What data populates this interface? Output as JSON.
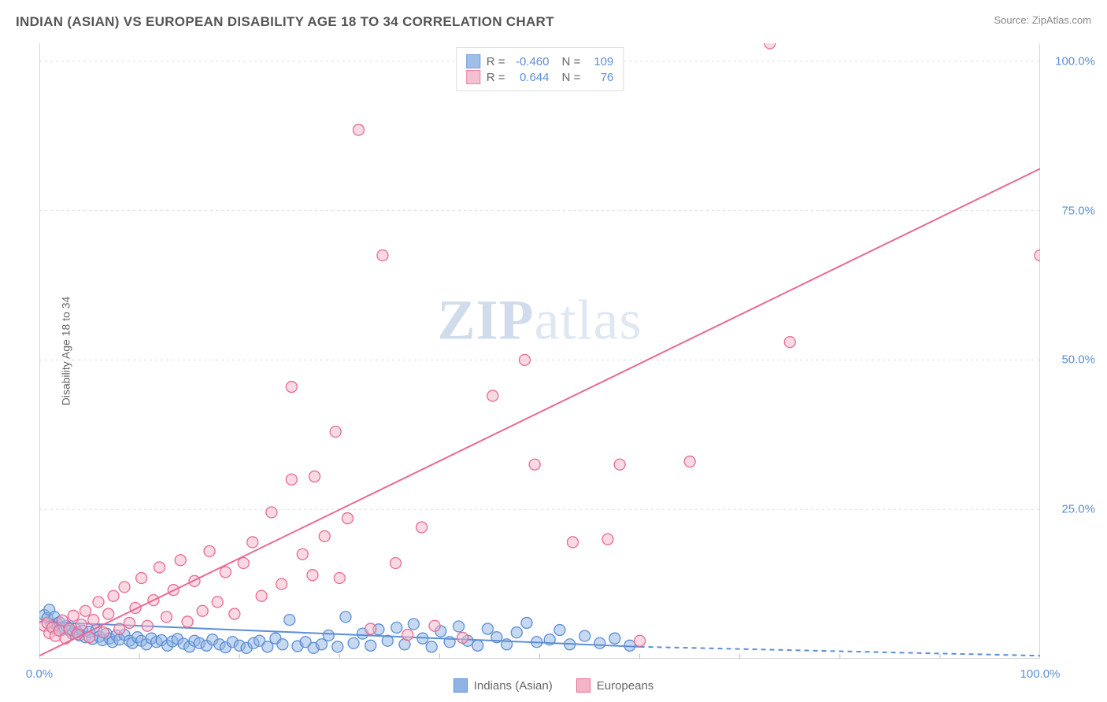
{
  "title": "INDIAN (ASIAN) VS EUROPEAN DISABILITY AGE 18 TO 34 CORRELATION CHART",
  "source_prefix": "Source: ",
  "source_link": "ZipAtlas.com",
  "ylabel": "Disability Age 18 to 34",
  "watermark_bold": "ZIP",
  "watermark_light": "atlas",
  "chart": {
    "type": "scatter",
    "background_color": "#ffffff",
    "grid_color": "#dddddd",
    "border_color": "#bbbbbb",
    "xlim": [
      0,
      100
    ],
    "ylim": [
      0,
      103
    ],
    "xtick_labels": [
      {
        "pos": 0,
        "label": "0.0%"
      },
      {
        "pos": 100,
        "label": "100.0%"
      }
    ],
    "xtick_minor": [
      10,
      20,
      30,
      40,
      50,
      60,
      70,
      80,
      90
    ],
    "ytick_labels": [
      {
        "pos": 25,
        "label": "25.0%"
      },
      {
        "pos": 50,
        "label": "50.0%"
      },
      {
        "pos": 75,
        "label": "75.0%"
      },
      {
        "pos": 100,
        "label": "100.0%"
      }
    ],
    "series": [
      {
        "name": "Indians (Asian)",
        "fill_color": "#8fb4e3",
        "stroke_color": "#5b8fd6",
        "fill_opacity": 0.5,
        "marker_radius": 7,
        "R": "-0.460",
        "N": "109",
        "trend": {
          "x1": 0,
          "y1": 6.2,
          "x2": 60,
          "y2": 2.0,
          "dash_from_x": 60,
          "dash_x2": 100,
          "dash_y2": 0.5,
          "color": "#5b8fd6",
          "width": 2
        },
        "points": [
          [
            0.5,
            7.3
          ],
          [
            0.8,
            6.8
          ],
          [
            1.0,
            8.2
          ],
          [
            1.2,
            5.5
          ],
          [
            1.5,
            7.0
          ],
          [
            1.8,
            5.9
          ],
          [
            2.0,
            6.1
          ],
          [
            2.2,
            4.8
          ],
          [
            2.5,
            5.2
          ],
          [
            2.7,
            5.5
          ],
          [
            3.0,
            4.7
          ],
          [
            3.3,
            4.2
          ],
          [
            3.6,
            5.0
          ],
          [
            3.8,
            4.4
          ],
          [
            4.0,
            3.9
          ],
          [
            4.3,
            4.7
          ],
          [
            4.6,
            3.6
          ],
          [
            5.0,
            4.5
          ],
          [
            5.3,
            3.3
          ],
          [
            5.7,
            4.8
          ],
          [
            6.0,
            3.7
          ],
          [
            6.3,
            3.1
          ],
          [
            6.7,
            4.2
          ],
          [
            7.0,
            3.4
          ],
          [
            7.3,
            2.8
          ],
          [
            7.7,
            3.9
          ],
          [
            8.0,
            3.2
          ],
          [
            8.5,
            4.0
          ],
          [
            9.0,
            3.0
          ],
          [
            9.3,
            2.6
          ],
          [
            9.8,
            3.6
          ],
          [
            10.2,
            3.0
          ],
          [
            10.7,
            2.4
          ],
          [
            11.2,
            3.4
          ],
          [
            11.7,
            2.8
          ],
          [
            12.2,
            3.1
          ],
          [
            12.8,
            2.2
          ],
          [
            13.3,
            2.9
          ],
          [
            13.8,
            3.3
          ],
          [
            14.4,
            2.5
          ],
          [
            15.0,
            2.0
          ],
          [
            15.5,
            3.0
          ],
          [
            16.0,
            2.6
          ],
          [
            16.7,
            2.2
          ],
          [
            17.3,
            3.2
          ],
          [
            18.0,
            2.4
          ],
          [
            18.6,
            1.9
          ],
          [
            19.3,
            2.8
          ],
          [
            20.0,
            2.2
          ],
          [
            20.7,
            1.8
          ],
          [
            21.4,
            2.6
          ],
          [
            22.0,
            3.0
          ],
          [
            22.8,
            2.0
          ],
          [
            23.6,
            3.4
          ],
          [
            24.3,
            2.4
          ],
          [
            25.0,
            6.5
          ],
          [
            25.8,
            2.1
          ],
          [
            26.6,
            2.8
          ],
          [
            27.4,
            1.8
          ],
          [
            28.2,
            2.4
          ],
          [
            28.9,
            3.9
          ],
          [
            29.8,
            2.0
          ],
          [
            30.6,
            7.0
          ],
          [
            31.4,
            2.6
          ],
          [
            32.3,
            4.2
          ],
          [
            33.1,
            2.2
          ],
          [
            33.9,
            4.9
          ],
          [
            34.8,
            3.0
          ],
          [
            35.7,
            5.2
          ],
          [
            36.5,
            2.4
          ],
          [
            37.4,
            5.8
          ],
          [
            38.3,
            3.4
          ],
          [
            39.2,
            2.0
          ],
          [
            40.1,
            4.6
          ],
          [
            41.0,
            2.8
          ],
          [
            41.9,
            5.4
          ],
          [
            42.8,
            3.0
          ],
          [
            43.8,
            2.2
          ],
          [
            44.8,
            5.0
          ],
          [
            45.7,
            3.6
          ],
          [
            46.7,
            2.4
          ],
          [
            47.7,
            4.4
          ],
          [
            48.7,
            6.0
          ],
          [
            49.7,
            2.8
          ],
          [
            51.0,
            3.2
          ],
          [
            52.0,
            4.8
          ],
          [
            53.0,
            2.4
          ],
          [
            54.5,
            3.8
          ],
          [
            56.0,
            2.6
          ],
          [
            57.5,
            3.4
          ],
          [
            59.0,
            2.2
          ]
        ]
      },
      {
        "name": "Europeans",
        "fill_color": "#f4b6c7",
        "stroke_color": "#e86a93",
        "fill_opacity": 0.5,
        "marker_radius": 7,
        "R": "0.644",
        "N": "76",
        "trend": {
          "x1": 0,
          "y1": 0.5,
          "x2": 100,
          "y2": 82,
          "color": "#e86a93",
          "width": 2
        },
        "points": [
          [
            0.5,
            5.5
          ],
          [
            0.8,
            6.0
          ],
          [
            1.0,
            4.3
          ],
          [
            1.3,
            5.2
          ],
          [
            1.6,
            3.8
          ],
          [
            2.0,
            4.7
          ],
          [
            2.3,
            6.4
          ],
          [
            2.6,
            3.4
          ],
          [
            3.0,
            5.0
          ],
          [
            3.4,
            7.2
          ],
          [
            3.8,
            4.1
          ],
          [
            4.2,
            5.7
          ],
          [
            4.6,
            8.0
          ],
          [
            5.0,
            3.6
          ],
          [
            5.4,
            6.5
          ],
          [
            5.9,
            9.5
          ],
          [
            6.4,
            4.4
          ],
          [
            6.9,
            7.5
          ],
          [
            7.4,
            10.5
          ],
          [
            8.0,
            5.0
          ],
          [
            8.5,
            12.0
          ],
          [
            9.0,
            6.0
          ],
          [
            9.6,
            8.5
          ],
          [
            10.2,
            13.5
          ],
          [
            10.8,
            5.5
          ],
          [
            11.4,
            9.8
          ],
          [
            12.0,
            15.3
          ],
          [
            12.7,
            7.0
          ],
          [
            13.4,
            11.5
          ],
          [
            14.1,
            16.5
          ],
          [
            14.8,
            6.2
          ],
          [
            15.5,
            13.0
          ],
          [
            16.3,
            8.0
          ],
          [
            17.0,
            18.0
          ],
          [
            17.8,
            9.5
          ],
          [
            18.6,
            14.5
          ],
          [
            19.5,
            7.5
          ],
          [
            20.4,
            16.0
          ],
          [
            21.3,
            19.5
          ],
          [
            22.2,
            10.5
          ],
          [
            23.2,
            24.5
          ],
          [
            24.2,
            12.5
          ],
          [
            25.2,
            45.5
          ],
          [
            25.2,
            30.0
          ],
          [
            26.3,
            17.5
          ],
          [
            27.3,
            14.0
          ],
          [
            27.5,
            30.5
          ],
          [
            28.5,
            20.5
          ],
          [
            29.6,
            38.0
          ],
          [
            30.0,
            13.5
          ],
          [
            30.8,
            23.5
          ],
          [
            31.9,
            88.5
          ],
          [
            33.1,
            5.0
          ],
          [
            34.3,
            67.5
          ],
          [
            35.6,
            16.0
          ],
          [
            36.8,
            4.0
          ],
          [
            38.2,
            22.0
          ],
          [
            39.5,
            5.5
          ],
          [
            42.3,
            3.5
          ],
          [
            45.3,
            44.0
          ],
          [
            48.5,
            50.0
          ],
          [
            49.5,
            32.5
          ],
          [
            53.3,
            19.5
          ],
          [
            56.8,
            20.0
          ],
          [
            58.0,
            32.5
          ],
          [
            60.0,
            3.0
          ],
          [
            65.0,
            33.0
          ],
          [
            73.0,
            103.0
          ],
          [
            75.0,
            53.0
          ],
          [
            100.0,
            67.5
          ]
        ]
      }
    ],
    "bottom_legend": [
      {
        "swatch_fill": "#8fb4e3",
        "swatch_stroke": "#5b8fd6",
        "label": "Indians (Asian)"
      },
      {
        "swatch_fill": "#f4b6c7",
        "swatch_stroke": "#e86a93",
        "label": "Europeans"
      }
    ]
  }
}
